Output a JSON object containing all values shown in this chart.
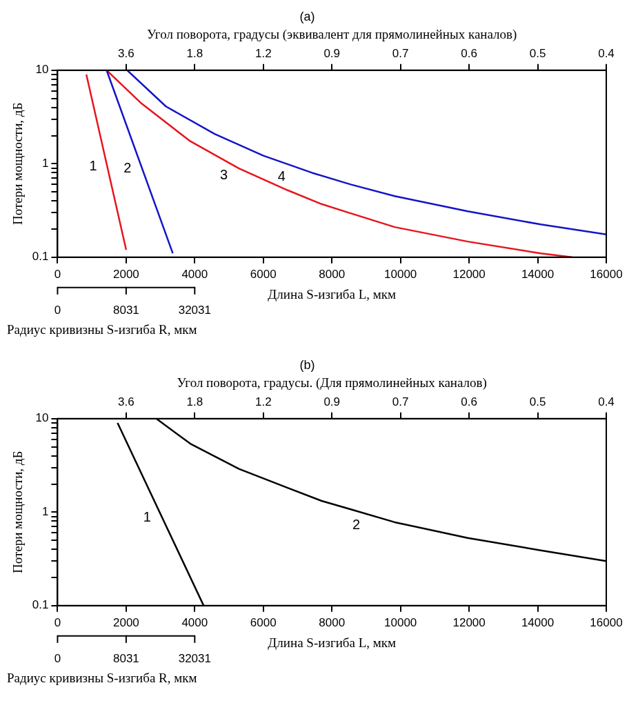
{
  "chart_data": [
    {
      "type": "line",
      "title": "(a)",
      "xlabel": "Длина S-изгиба L, мкм",
      "ylabel": "Потери мощности, дБ",
      "x2label": "Угол поворота, градусы (эквивалент для прямолинейных каналов)",
      "log": "y",
      "xlim": [
        0,
        16000
      ],
      "xticks": [
        0,
        2000,
        4000,
        6000,
        8000,
        10000,
        12000,
        14000,
        16000
      ],
      "ylim": [
        0.1,
        10
      ],
      "yticks": [
        0.1,
        {
          "value": 0.2,
          "label": null
        },
        {
          "value": 0.3,
          "label": null
        },
        {
          "value": 0.4,
          "label": null
        },
        {
          "value": 0.5,
          "label": null
        },
        {
          "value": 0.6,
          "label": null
        },
        {
          "value": 0.7,
          "label": null
        },
        {
          "value": 0.8,
          "label": null
        },
        {
          "value": 0.9,
          "label": null
        },
        1,
        {
          "value": 2,
          "label": null
        },
        {
          "value": 3,
          "label": null
        },
        {
          "value": 4,
          "label": null
        },
        {
          "value": 5,
          "label": null
        },
        {
          "value": 6,
          "label": null
        },
        {
          "value": 7,
          "label": null
        },
        {
          "value": 8,
          "label": null
        },
        {
          "value": 9,
          "label": null
        },
        10
      ],
      "legend": false,
      "annotations": [
        "3.6",
        "1.8",
        "1.2",
        "0.9",
        "0.7",
        "0.6",
        "0.5",
        "0.4",
        "0",
        "8031",
        "32031",
        "Радиус кривизны S-изгиба R, мкм"
      ],
      "series": [
        {
          "name": "1",
          "color": "#e8141c",
          "x": [
            840,
            2000
          ],
          "values": [
            9,
            0.12
          ]
        },
        {
          "name": "2",
          "color": "#1414c8",
          "x": [
            1430,
            3360
          ],
          "values": [
            10,
            0.11
          ]
        },
        {
          "name": "3",
          "color": "#e8141c",
          "x": [
            1430,
            2450,
            3870,
            5290,
            6710,
            7700,
            8480,
            9830,
            11960,
            14090,
            15000
          ],
          "values": [
            10,
            4.4,
            1.74,
            0.89,
            0.52,
            0.37,
            0.3,
            0.21,
            0.147,
            0.11,
            0.1
          ]
        },
        {
          "name": "4",
          "color": "#1414c8",
          "x": [
            2030,
            3160,
            4580,
            6000,
            7420,
            8550,
            9830,
            11960,
            14090,
            16000
          ],
          "values": [
            10,
            4.1,
            2.08,
            1.22,
            0.8,
            0.6,
            0.45,
            0.31,
            0.224,
            0.175
          ]
        }
      ]
    },
    {
      "type": "line",
      "title": "(b)",
      "xlabel": "Длина S-изгиба L, мкм",
      "ylabel": "Потери мощности, дБ",
      "x2label": "Угол поворота, градусы. (Для прямолинейных каналов)",
      "log": "y",
      "xlim": [
        0,
        16000
      ],
      "xticks": [
        0,
        2000,
        4000,
        6000,
        8000,
        10000,
        12000,
        14000,
        16000
      ],
      "ylim": [
        0.1,
        10
      ],
      "yticks": [
        0.1,
        {
          "value": 0.2,
          "label": null
        },
        {
          "value": 0.3,
          "label": null
        },
        {
          "value": 0.4,
          "label": null
        },
        {
          "value": 0.5,
          "label": null
        },
        {
          "value": 0.6,
          "label": null
        },
        {
          "value": 0.7,
          "label": null
        },
        {
          "value": 0.8,
          "label": null
        },
        {
          "value": 0.9,
          "label": null
        },
        1,
        {
          "value": 2,
          "label": null
        },
        {
          "value": 3,
          "label": null
        },
        {
          "value": 4,
          "label": null
        },
        {
          "value": 5,
          "label": null
        },
        {
          "value": 6,
          "label": null
        },
        {
          "value": 7,
          "label": null
        },
        {
          "value": 8,
          "label": null
        },
        {
          "value": 9,
          "label": null
        },
        10
      ],
      "legend": false,
      "annotations": [
        "3.6",
        "1.8",
        "1.2",
        "0.9",
        "0.7",
        "0.6",
        "0.5",
        "0.4",
        "0",
        "8031",
        "32031",
        "Радиус кривизны S-изгиба R, мкм"
      ],
      "series": [
        {
          "name": "1",
          "color": "#000000",
          "x": [
            1750,
            4260
          ],
          "values": [
            9,
            0.1
          ]
        },
        {
          "name": "2",
          "color": "#000000",
          "x": [
            2880,
            3870,
            5290,
            6710,
            7700,
            8550,
            9830,
            11960,
            14090,
            16000
          ],
          "values": [
            10,
            5.4,
            2.9,
            1.82,
            1.32,
            1.07,
            0.78,
            0.53,
            0.39,
            0.3
          ]
        }
      ]
    }
  ]
}
